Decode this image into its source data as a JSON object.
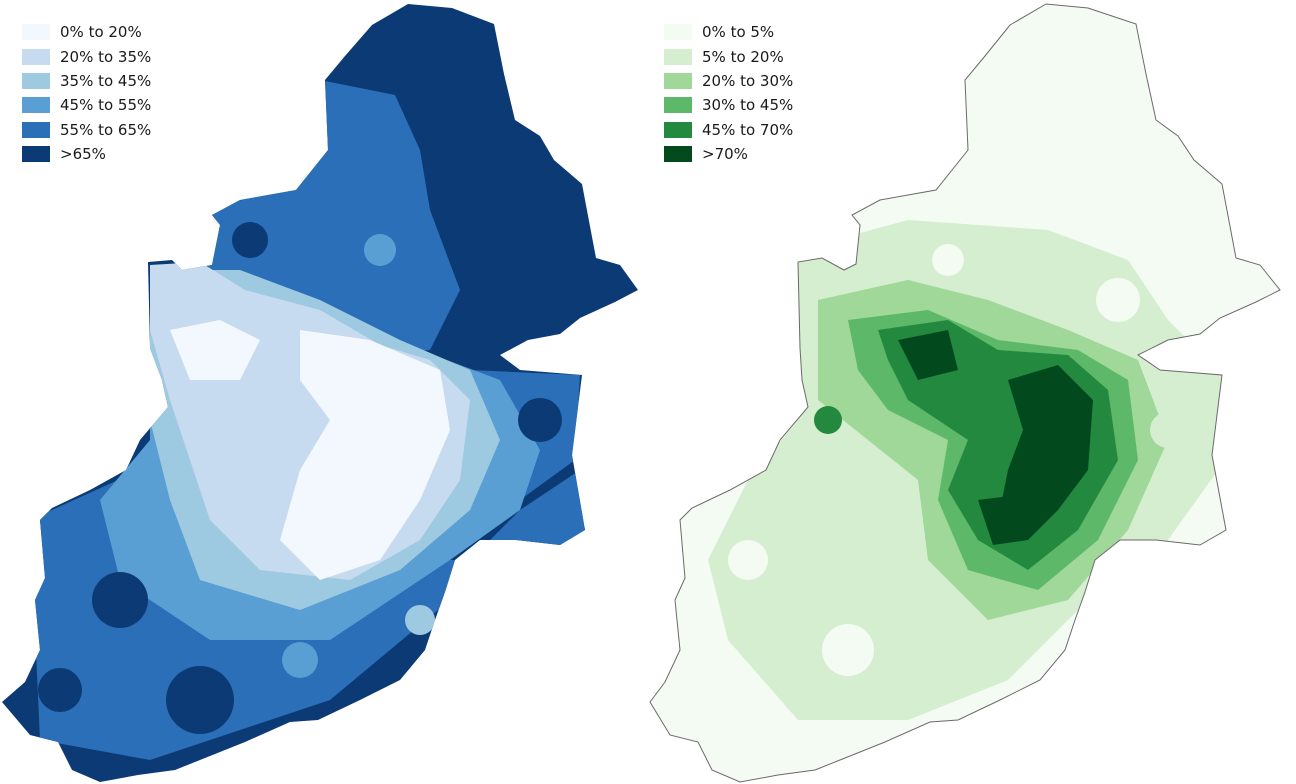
{
  "maps": [
    {
      "id": "left",
      "colors": {
        "fill_outline": "#08306b",
        "boundary": "#6a6a6a"
      },
      "legend": [
        {
          "label": "0% to 20%",
          "color": "#f3f8fe"
        },
        {
          "label": "20% to 35%",
          "color": "#c6dbef"
        },
        {
          "label": "35% to 45%",
          "color": "#9ecae1"
        },
        {
          "label": "45% to 55%",
          "color": "#5a9fd4"
        },
        {
          "label": "55% to 65%",
          "color": "#2a6fb8"
        },
        {
          "label": ">65%",
          "color": "#0b3a75"
        }
      ]
    },
    {
      "id": "right",
      "colors": {
        "fill_outline": "#00441b",
        "boundary": "#6a6a6a"
      },
      "legend": [
        {
          "label": "0% to 5%",
          "color": "#f4fbf2"
        },
        {
          "label": "5% to 20%",
          "color": "#d4eecf"
        },
        {
          "label": "20% to 30%",
          "color": "#9fd898"
        },
        {
          "label": "30% to 45%",
          "color": "#5db869"
        },
        {
          "label": "45% to 70%",
          "color": "#23893f"
        },
        {
          "label": ">70%",
          "color": "#024a1e"
        }
      ]
    }
  ]
}
